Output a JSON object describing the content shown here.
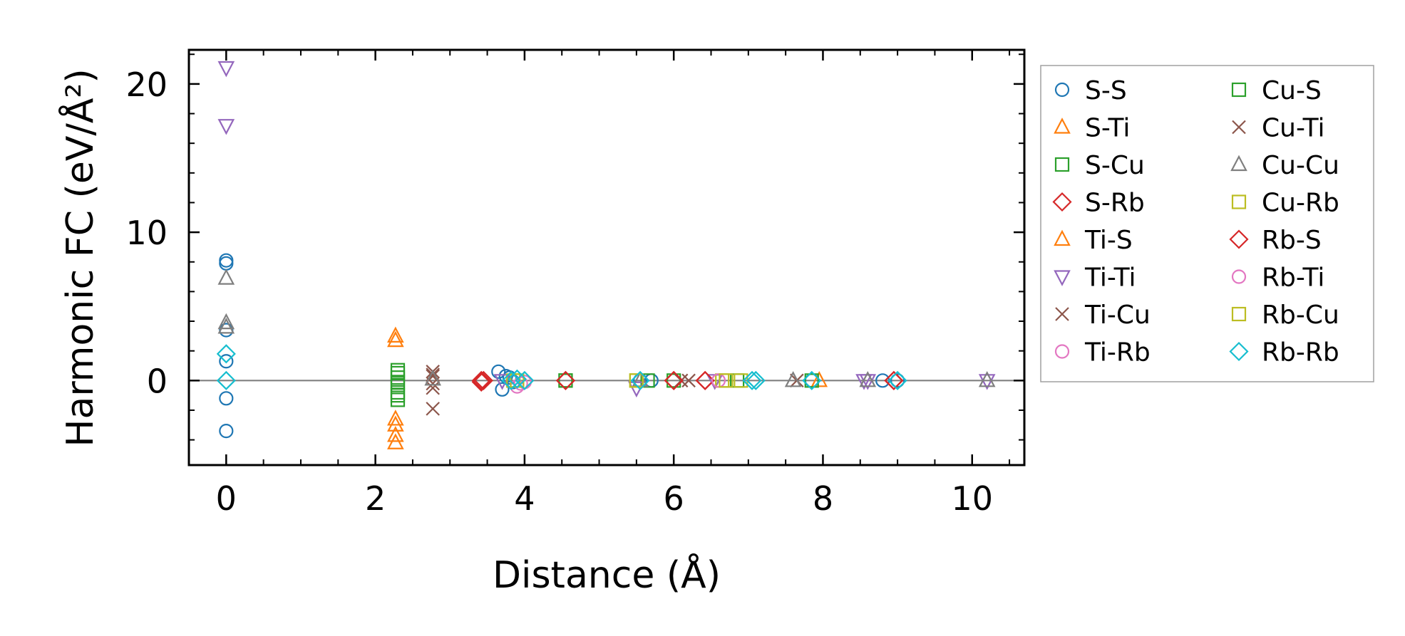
{
  "chart_data": {
    "type": "scatter",
    "title": "",
    "xlabel": "Distance (Å)",
    "ylabel": "Harmonic FC (eV/Å²)",
    "xlim": [
      -0.5,
      10.7
    ],
    "ylim": [
      -5.7,
      22.3
    ],
    "xticks": [
      0,
      2,
      4,
      6,
      8,
      10
    ],
    "xtick_labels": [
      "0",
      "2",
      "4",
      "6",
      "8",
      "10"
    ],
    "yticks": [
      0,
      10,
      20
    ],
    "ytick_labels": [
      "0",
      "10",
      "20"
    ],
    "grid": false,
    "zero_line": true,
    "legend_position": "outside-right",
    "series": [
      {
        "name": "S-S",
        "marker": "circle",
        "color": "#1f77b4",
        "points": [
          [
            0,
            8.1
          ],
          [
            0,
            7.9
          ],
          [
            0,
            3.4
          ],
          [
            0,
            1.3
          ],
          [
            0,
            -1.2
          ],
          [
            0,
            -3.4
          ],
          [
            3.65,
            0.6
          ],
          [
            3.7,
            -0.6
          ],
          [
            3.75,
            0.3
          ],
          [
            3.8,
            0.2
          ],
          [
            3.85,
            -0.1
          ],
          [
            5.55,
            0
          ],
          [
            5.7,
            0
          ],
          [
            7.85,
            0
          ],
          [
            8.8,
            0
          ],
          [
            9.0,
            0
          ]
        ]
      },
      {
        "name": "S-Ti",
        "marker": "triangle-up",
        "color": "#ff7f0e",
        "points": [
          [
            2.27,
            3.0
          ],
          [
            2.27,
            -3.0
          ],
          [
            2.27,
            -4.2
          ],
          [
            7.95,
            0
          ]
        ]
      },
      {
        "name": "S-Cu",
        "marker": "square",
        "color": "#2ca02c",
        "points": [
          [
            2.3,
            0.7
          ],
          [
            2.3,
            0.2
          ],
          [
            2.3,
            -0.3
          ],
          [
            2.3,
            -0.8
          ],
          [
            2.3,
            -1.3
          ],
          [
            4.55,
            0
          ],
          [
            5.65,
            0
          ],
          [
            6.85,
            0
          ],
          [
            7.85,
            0
          ]
        ]
      },
      {
        "name": "S-Rb",
        "marker": "diamond",
        "color": "#d62728",
        "points": [
          [
            3.42,
            -0.1
          ],
          [
            3.45,
            0
          ],
          [
            4.55,
            0
          ],
          [
            6.0,
            0
          ],
          [
            6.42,
            0
          ],
          [
            8.95,
            0
          ]
        ]
      },
      {
        "name": "Ti-S",
        "marker": "triangle-up",
        "color": "#ff7f0e",
        "points": [
          [
            2.27,
            2.7
          ],
          [
            2.27,
            -2.6
          ],
          [
            2.27,
            -3.7
          ]
        ]
      },
      {
        "name": "Ti-Ti",
        "marker": "triangle-down",
        "color": "#9467bd",
        "points": [
          [
            0,
            21.1
          ],
          [
            0,
            17.2
          ],
          [
            3.7,
            0
          ],
          [
            5.5,
            -0.5
          ],
          [
            6.55,
            0
          ],
          [
            8.55,
            0
          ],
          [
            8.6,
            0
          ],
          [
            10.2,
            0
          ]
        ]
      },
      {
        "name": "Ti-Cu",
        "marker": "x",
        "color": "#8c564b",
        "points": [
          [
            2.77,
            0.6
          ],
          [
            2.77,
            0.3
          ],
          [
            2.77,
            -0.5
          ],
          [
            2.77,
            -1.9
          ],
          [
            6.2,
            0
          ],
          [
            7.65,
            0
          ]
        ]
      },
      {
        "name": "Ti-Rb",
        "marker": "circle",
        "color": "#e377c2",
        "points": [
          [
            3.9,
            -0.4
          ],
          [
            4.0,
            -0.1
          ]
        ]
      },
      {
        "name": "Cu-S",
        "marker": "square",
        "color": "#2ca02c",
        "points": [
          [
            2.3,
            0.5
          ],
          [
            2.3,
            -0.1
          ],
          [
            2.3,
            -1.0
          ],
          [
            4.55,
            0
          ],
          [
            6.0,
            0
          ]
        ]
      },
      {
        "name": "Cu-Ti",
        "marker": "x",
        "color": "#8c564b",
        "points": [
          [
            2.77,
            0.4
          ],
          [
            2.77,
            -0.2
          ],
          [
            6.1,
            0
          ]
        ]
      },
      {
        "name": "Cu-Cu",
        "marker": "triangle-up",
        "color": "#7f7f7f",
        "points": [
          [
            0,
            6.9
          ],
          [
            0,
            3.9
          ],
          [
            0,
            3.6
          ],
          [
            2.77,
            0.1
          ],
          [
            5.55,
            0
          ],
          [
            7.6,
            0
          ],
          [
            8.6,
            0
          ],
          [
            10.2,
            0
          ]
        ]
      },
      {
        "name": "Cu-Rb",
        "marker": "square",
        "color": "#bcbd22",
        "points": [
          [
            3.85,
            0
          ],
          [
            5.5,
            0
          ],
          [
            6.65,
            0
          ],
          [
            6.9,
            0
          ]
        ]
      },
      {
        "name": "Rb-S",
        "marker": "diamond",
        "color": "#d62728",
        "points": [
          [
            3.42,
            0
          ],
          [
            4.55,
            0
          ],
          [
            6.0,
            0
          ],
          [
            6.42,
            0
          ],
          [
            8.95,
            0
          ]
        ]
      },
      {
        "name": "Rb-Ti",
        "marker": "circle",
        "color": "#e377c2",
        "points": [
          [
            3.95,
            -0.2
          ],
          [
            6.6,
            0
          ]
        ]
      },
      {
        "name": "Rb-Cu",
        "marker": "square",
        "color": "#bcbd22",
        "points": [
          [
            3.9,
            0
          ],
          [
            5.5,
            0
          ],
          [
            6.7,
            0
          ]
        ]
      },
      {
        "name": "Rb-Rb",
        "marker": "diamond",
        "color": "#17becf",
        "points": [
          [
            0,
            1.8
          ],
          [
            0,
            0
          ],
          [
            3.82,
            0
          ],
          [
            3.9,
            0.1
          ],
          [
            4.0,
            0
          ],
          [
            5.55,
            0
          ],
          [
            7.05,
            0
          ],
          [
            7.1,
            0
          ],
          [
            7.85,
            0
          ],
          [
            9.0,
            0
          ]
        ]
      }
    ]
  }
}
